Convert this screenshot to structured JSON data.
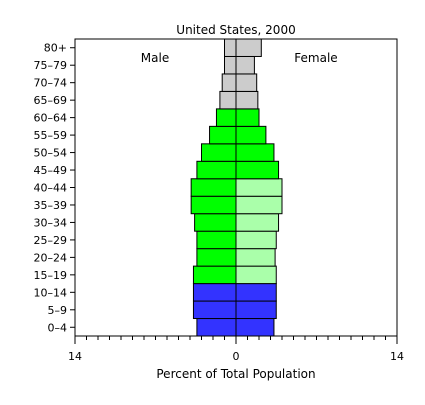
{
  "chart_data": {
    "type": "bar",
    "title": "United States, 2000",
    "xlabel": "Percent of Total Population",
    "ylabel": "",
    "xlim": [
      -14,
      14
    ],
    "x_ticks": [
      "14",
      "0",
      "14"
    ],
    "grid": false,
    "categories": [
      "0–4",
      "5–9",
      "10–14",
      "15–19",
      "20–24",
      "25–29",
      "30–34",
      "35–39",
      "40–44",
      "45–49",
      "50–54",
      "55–59",
      "60–64",
      "65–69",
      "70–74",
      "75–79",
      "80+"
    ],
    "series": [
      {
        "name": "Male",
        "values": [
          3.4,
          3.7,
          3.7,
          3.7,
          3.4,
          3.4,
          3.6,
          3.9,
          3.9,
          3.4,
          3.0,
          2.3,
          1.7,
          1.4,
          1.2,
          1.0,
          1.0
        ]
      },
      {
        "name": "Female",
        "values": [
          3.3,
          3.5,
          3.5,
          3.5,
          3.4,
          3.5,
          3.7,
          4.0,
          4.0,
          3.7,
          3.3,
          2.6,
          2.0,
          1.9,
          1.8,
          1.6,
          2.2
        ]
      }
    ],
    "group_colors": {
      "children_0_14": "#3333ff",
      "working_age_male": "#00ff00",
      "working_age_female_15_44": "#aaffaa",
      "working_age_female_45_64": "#00ff00",
      "elderly_65_plus": "#cccccc"
    }
  }
}
